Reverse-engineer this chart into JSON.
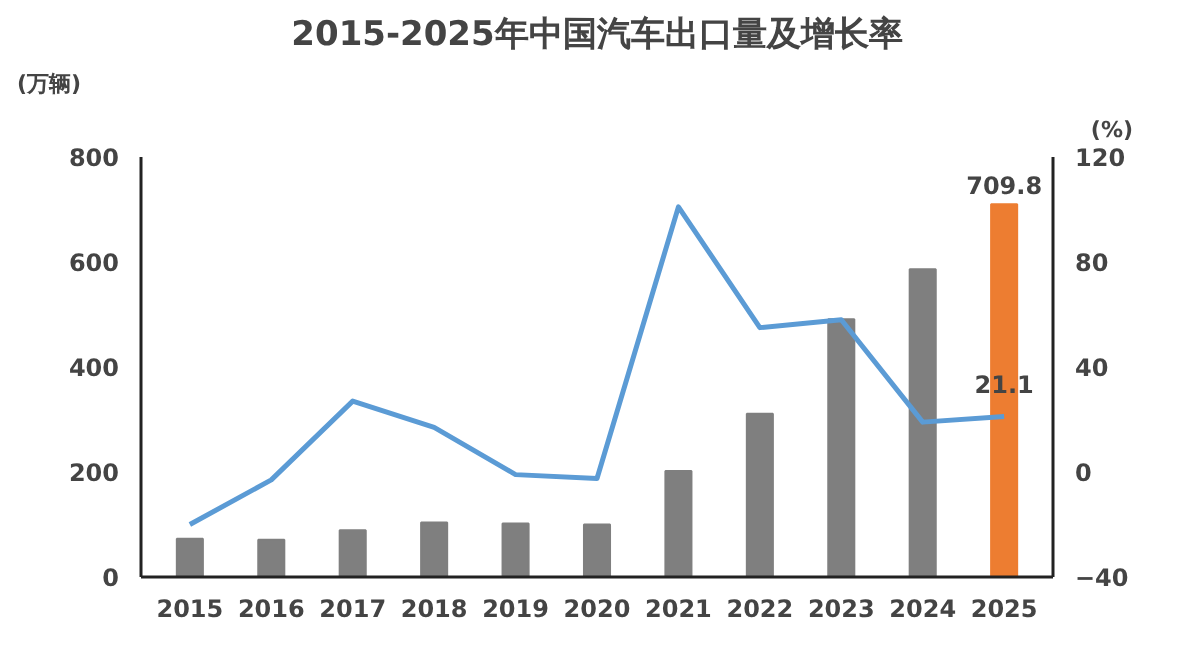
{
  "chart_data": {
    "type": "bar",
    "title": "2015-2025年中国汽车出口量及增长率",
    "ylabel": "(万辆)",
    "y2label": "(%)",
    "categories": [
      "2015",
      "2016",
      "2017",
      "2018",
      "2019",
      "2020",
      "2021",
      "2022",
      "2023",
      "2024",
      "2025"
    ],
    "series": [
      {
        "colors": [
          "#7f7f7f",
          "#7f7f7f",
          "#7f7f7f",
          "#7f7f7f",
          "#7f7f7f",
          "#7f7f7f",
          "#7f7f7f",
          "#7f7f7f",
          "#7f7f7f",
          "#7f7f7f",
          "#ed7d31"
        ],
        "values": [
          73,
          71,
          89,
          104,
          102,
          100,
          202,
          311,
          491,
          586,
          709.8
        ],
        "value_labels": [
          null,
          null,
          null,
          null,
          null,
          null,
          null,
          null,
          null,
          null,
          "709.8"
        ]
      },
      {
        "type": "line",
        "axis": "y2",
        "color": "#5b9bd5",
        "values": [
          -20,
          -3,
          27,
          17,
          -1,
          -2.5,
          101,
          55,
          58,
          19,
          21.1
        ],
        "value_labels": [
          null,
          null,
          null,
          null,
          null,
          null,
          null,
          null,
          null,
          null,
          "21.1"
        ]
      }
    ],
    "ylim": [
      0,
      800
    ],
    "yticks": [
      0,
      200,
      400,
      600,
      800
    ],
    "y2lim": [
      -40,
      120
    ],
    "y2ticks": [
      -40,
      0,
      40,
      80,
      120
    ],
    "grid": false
  }
}
